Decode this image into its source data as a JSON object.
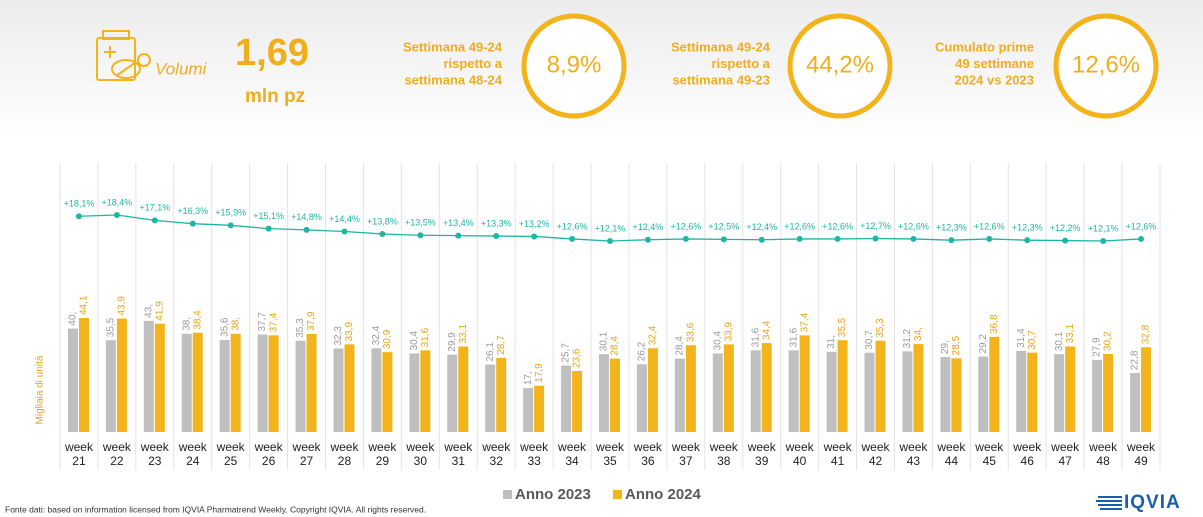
{
  "header": {
    "volume_label": "Volumi",
    "volume_value": "1,69",
    "volume_unit": "mln pz",
    "kpis": [
      {
        "lines": [
          "Settimana 49-24",
          "rispetto a",
          "settimana 48-24"
        ],
        "value": "8,9%"
      },
      {
        "lines": [
          "Settimana 49-24",
          "rispetto a",
          "settimana 49-23"
        ],
        "value": "44,2%"
      },
      {
        "lines": [
          "Cumulato prime",
          "49 settimane",
          "2024 vs 2023"
        ],
        "value": "12,6%"
      }
    ]
  },
  "chart_data": {
    "type": "bar",
    "y_label": "Migliaia di unità",
    "categories": [
      "week 21",
      "week 22",
      "week 23",
      "week 24",
      "week 25",
      "week 26",
      "week 27",
      "week 28",
      "week 29",
      "week 30",
      "week 31",
      "week 32",
      "week 33",
      "week 34",
      "week 35",
      "week 36",
      "week 37",
      "week 38",
      "week 39",
      "week 40",
      "week 41",
      "week 42",
      "week 43",
      "week 44",
      "week 45",
      "week 46",
      "week 47",
      "week 48",
      "week 49"
    ],
    "series": [
      {
        "name": "Anno 2023",
        "color": "#bfbfbf",
        "label_color": "#9a9a9a",
        "values": [
          40,
          35.5,
          43,
          38,
          35.6,
          37.7,
          35.3,
          32.3,
          32.4,
          30.4,
          29.9,
          26.1,
          17,
          25.7,
          30.1,
          26.2,
          28.4,
          30.4,
          31.6,
          31.6,
          31,
          30.7,
          31.2,
          29,
          29.2,
          31.4,
          30.1,
          27.9,
          22.8
        ],
        "value_labels": [
          "40,",
          "35,5",
          "43,",
          "38,",
          "35,6",
          "37,7",
          "35,3",
          "32,3",
          "32,4",
          "30,4",
          "29,9",
          "26,1",
          "17,",
          "25,7",
          "30,1",
          "26,2",
          "28,4",
          "30,4",
          "31,6",
          "31,6",
          "31,",
          "30,7",
          "31,2",
          "29,",
          "29,2",
          "31,4",
          "30,1",
          "27,9",
          "22,8"
        ]
      },
      {
        "name": "Anno 2024",
        "color": "#f2b31b",
        "label_color": "#e6a417",
        "values": [
          44.1,
          43.9,
          41.9,
          38.4,
          38,
          37.4,
          37.9,
          33.9,
          30.9,
          31.6,
          33.1,
          28.7,
          17.9,
          23.6,
          28.4,
          32.4,
          33.6,
          33.9,
          34.4,
          37.4,
          35.5,
          35.3,
          34,
          28.5,
          36.8,
          30.7,
          33.1,
          30.2,
          32.8
        ],
        "value_labels": [
          "44,1",
          "43,9",
          "41,9",
          "38,4",
          "38,",
          "37,4",
          "37,9",
          "33,9",
          "30,9",
          "31,6",
          "33,1",
          "28,7",
          "17,9",
          "23,6",
          "28,4",
          "32,4",
          "33,6",
          "33,9",
          "34,4",
          "37,4",
          "35,5",
          "35,3",
          "34,",
          "28,5",
          "36,8",
          "30,7",
          "33,1",
          "30,2",
          "32,8"
        ]
      }
    ],
    "growth": {
      "type": "line",
      "color": "#1fb5a4",
      "values": [
        18.1,
        18.4,
        17.1,
        16.3,
        15.9,
        15.1,
        14.8,
        14.4,
        13.8,
        13.5,
        13.4,
        13.3,
        13.2,
        12.6,
        12.1,
        12.4,
        12.6,
        12.5,
        12.4,
        12.6,
        12.6,
        12.7,
        12.6,
        12.3,
        12.6,
        12.3,
        12.2,
        12.1,
        12.6
      ],
      "value_labels": [
        "+18,1%",
        "+18,4%",
        "+17,1%",
        "+16,3%",
        "+15,9%",
        "+15,1%",
        "+14,8%",
        "+14,4%",
        "+13,8%",
        "+13,5%",
        "+13,4%",
        "+13,3%",
        "+13,2%",
        "+12,6%",
        "+12,1%",
        "+12,4%",
        "+12,6%",
        "+12,5%",
        "+12,4%",
        "+12,6%",
        "+12,6%",
        "+12,7%",
        "+12,6%",
        "+12,3%",
        "+12,6%",
        "+12,3%",
        "+12,2%",
        "+12,1%",
        "+12,6%"
      ]
    },
    "legend": "bottom"
  },
  "footnote": "Fonte dati: based on information licensed from IQVIA Pharmatrend Weekly. Copyright IQVIA. All rights reserved.",
  "logo": "IQVIA"
}
